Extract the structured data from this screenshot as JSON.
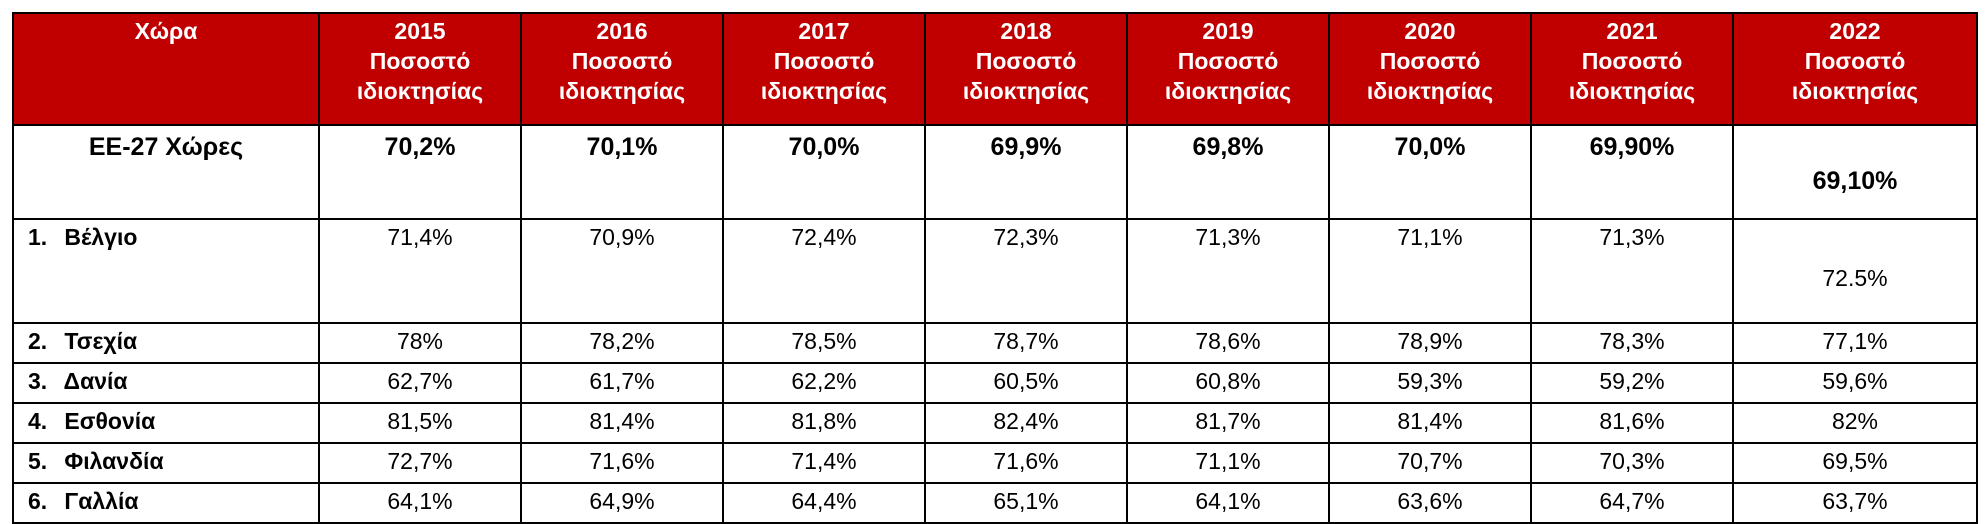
{
  "table": {
    "header": {
      "country": "Χώρα",
      "sub1": "Ποσοστό",
      "sub2": "ιδιοκτησίας",
      "years": [
        "2015",
        "2016",
        "2017",
        "2018",
        "2019",
        "2020",
        "2021",
        "2022"
      ]
    },
    "eu_row": {
      "country": "ΕΕ-27 Χώρες",
      "values": [
        "70,2%",
        "70,1%",
        "70,0%",
        "69,9%",
        "69,8%",
        "70,0%",
        "69,90%",
        "69,10%"
      ]
    },
    "rows": [
      {
        "num": "1.",
        "country": "Βέλγιο",
        "values": [
          "71,4%",
          "70,9%",
          "72,4%",
          "72,3%",
          "71,3%",
          "71,1%",
          "71,3%",
          "72.5%"
        ]
      },
      {
        "num": "2.",
        "country": "Τσεχία",
        "values": [
          "78%",
          "78,2%",
          "78,5%",
          "78,7%",
          "78,6%",
          "78,9%",
          "78,3%",
          "77,1%"
        ]
      },
      {
        "num": "3.",
        "country": "Δανία",
        "values": [
          "62,7%",
          "61,7%",
          "62,2%",
          "60,5%",
          "60,8%",
          "59,3%",
          "59,2%",
          "59,6%"
        ]
      },
      {
        "num": "4.",
        "country": "Εσθονία",
        "values": [
          "81,5%",
          "81,4%",
          "81,8%",
          "82,4%",
          "81,7%",
          "81,4%",
          "81,6%",
          "82%"
        ]
      },
      {
        "num": "5.",
        "country": "Φιλανδία",
        "values": [
          "72,7%",
          "71,6%",
          "71,4%",
          "71,6%",
          "71,1%",
          "70,7%",
          "70,3%",
          "69,5%"
        ]
      },
      {
        "num": "6.",
        "country": "Γαλλία",
        "values": [
          "64,1%",
          "64,9%",
          "64,4%",
          "65,1%",
          "64,1%",
          "63,6%",
          "64,7%",
          "63,7%"
        ]
      }
    ]
  }
}
